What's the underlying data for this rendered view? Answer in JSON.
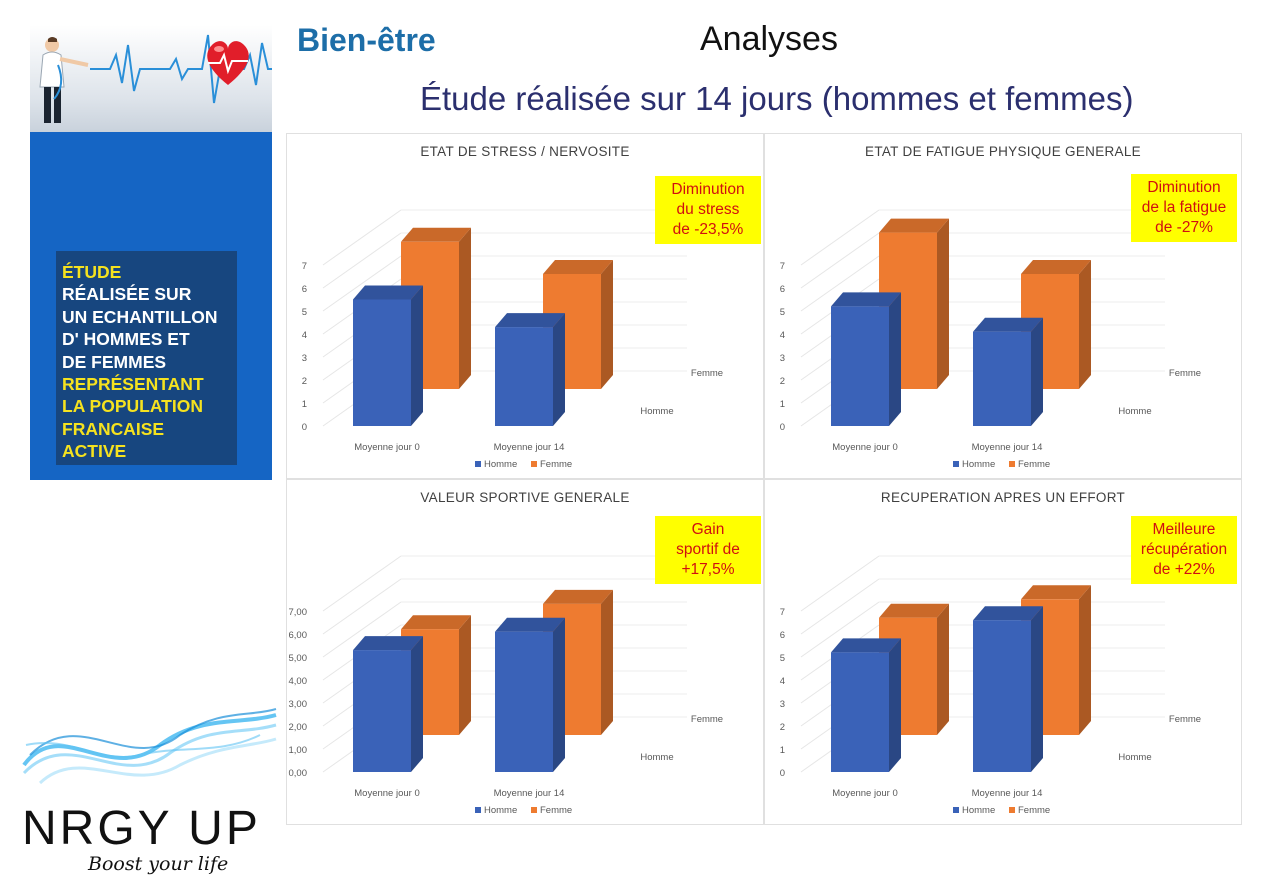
{
  "header": {
    "page_title": "Bien-être",
    "section_title": "Analyses",
    "study_title": "Étude réalisée sur 14 jours (hommes et femmes)"
  },
  "banner": {
    "lines": [
      {
        "text": "ÉTUDE",
        "color": "yellow"
      },
      {
        "text": "RÉALISÉE SUR",
        "color": "white"
      },
      {
        "text": "UN ECHANTILLON",
        "color": "white"
      },
      {
        "text": "D' HOMMES ET",
        "color": "white"
      },
      {
        "text": "DE FEMMES",
        "color": "white"
      },
      {
        "text": "REPRÉSENTANT",
        "color": "yellow"
      },
      {
        "text": "LA POPULATION",
        "color": "yellow"
      },
      {
        "text": "FRANCAISE",
        "color": "yellow"
      },
      {
        "text": "ACTIVE",
        "color": "yellow"
      }
    ]
  },
  "logo": {
    "name": "NRGY UP",
    "tagline": "Boost your life"
  },
  "colors": {
    "homme": "#3a62b8",
    "femme": "#ee7b30",
    "callout_bg": "#ffff00",
    "callout_text": "#d01010"
  },
  "chart_data": [
    {
      "type": "bar",
      "title": "ETAT DE STRESS / NERVOSITE",
      "callout": "Diminution\ndu stress\nde -23,5%",
      "categories": [
        "Moyenne jour 0",
        "Moyenne jour 14"
      ],
      "series": [
        {
          "name": "Homme",
          "values": [
            5.5,
            4.3
          ]
        },
        {
          "name": "Femme",
          "values": [
            6.4,
            5.0
          ]
        }
      ],
      "depth_labels": [
        "Homme",
        "Femme"
      ],
      "y_ticks": [
        "0",
        "1",
        "2",
        "3",
        "4",
        "5",
        "6",
        "7"
      ],
      "ylim": [
        0,
        7
      ],
      "legend_position": "bottom"
    },
    {
      "type": "bar",
      "title": "ETAT DE FATIGUE PHYSIQUE GENERALE",
      "callout": "Diminution\nde la fatigue\nde -27%",
      "categories": [
        "Moyenne jour 0",
        "Moyenne jour 14"
      ],
      "series": [
        {
          "name": "Homme",
          "values": [
            5.2,
            4.1
          ]
        },
        {
          "name": "Femme",
          "values": [
            6.8,
            5.0
          ]
        }
      ],
      "depth_labels": [
        "Homme",
        "Femme"
      ],
      "y_ticks": [
        "0",
        "1",
        "2",
        "3",
        "4",
        "5",
        "6",
        "7"
      ],
      "ylim": [
        0,
        7
      ],
      "legend_position": "bottom"
    },
    {
      "type": "bar",
      "title": "VALEUR SPORTIVE GENERALE",
      "callout": "Gain\nsportif de\n+17,5%",
      "categories": [
        "Moyenne jour 0",
        "Moyenne jour 14"
      ],
      "series": [
        {
          "name": "Homme",
          "values": [
            5.3,
            6.1
          ]
        },
        {
          "name": "Femme",
          "values": [
            4.6,
            5.7
          ]
        }
      ],
      "depth_labels": [
        "Homme",
        "Femme"
      ],
      "y_ticks": [
        "0,00",
        "1,00",
        "2,00",
        "3,00",
        "4,00",
        "5,00",
        "6,00",
        "7,00"
      ],
      "ylim": [
        0,
        7
      ],
      "legend_position": "bottom"
    },
    {
      "type": "bar",
      "title": "RECUPERATION APRES UN EFFORT",
      "callout": "Meilleure\nrécupération\nde +22%",
      "categories": [
        "Moyenne jour 0",
        "Moyenne jour 14"
      ],
      "series": [
        {
          "name": "Homme",
          "values": [
            5.2,
            6.6
          ]
        },
        {
          "name": "Femme",
          "values": [
            5.1,
            5.9
          ]
        }
      ],
      "depth_labels": [
        "Homme",
        "Femme"
      ],
      "y_ticks": [
        "0",
        "1",
        "2",
        "3",
        "4",
        "5",
        "6",
        "7"
      ],
      "ylim": [
        0,
        7
      ],
      "legend_position": "bottom"
    }
  ]
}
